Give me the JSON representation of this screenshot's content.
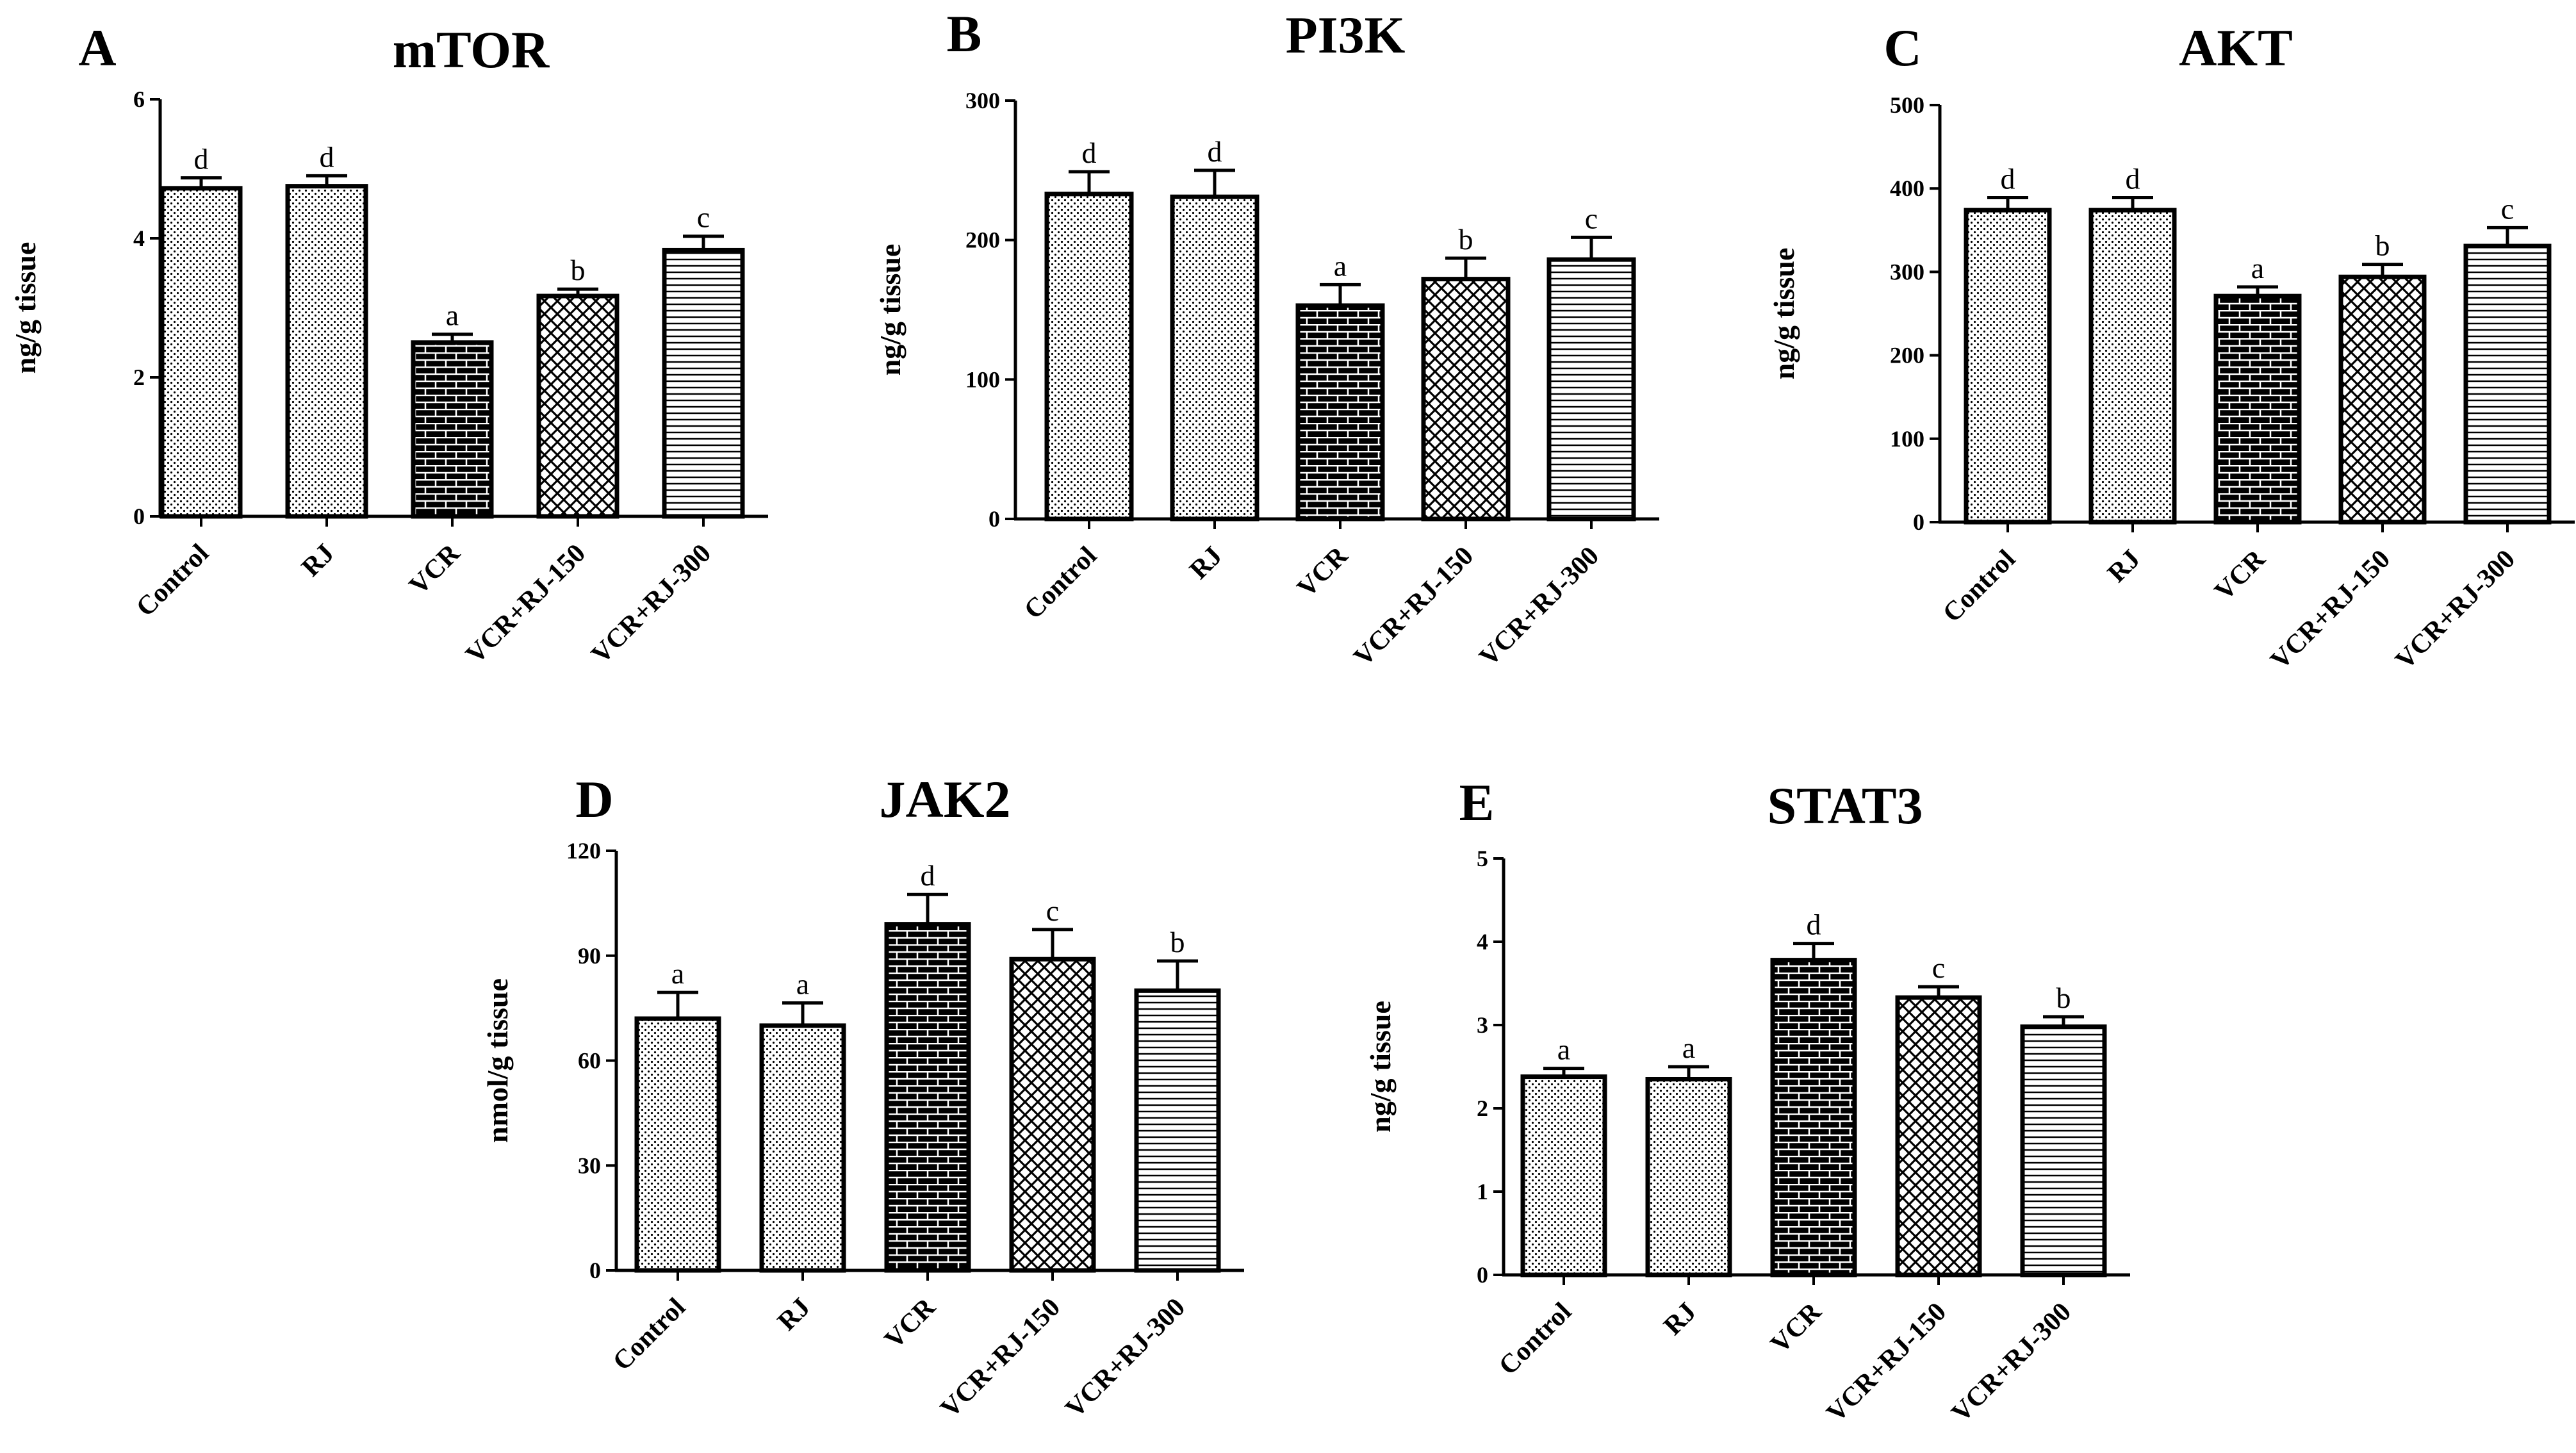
{
  "chart_data": [
    {
      "type": "bar",
      "panel": "A",
      "title": "mTOR",
      "ylabel": "ng/g tissue",
      "xlabel": "",
      "ylim": [
        0,
        6
      ],
      "yticks": [
        0,
        2,
        4,
        6
      ],
      "categories": [
        "Control",
        "RJ",
        "VCR",
        "VCR+RJ-150",
        "VCR+RJ-300"
      ],
      "values": [
        4.72,
        4.75,
        2.5,
        3.17,
        3.83
      ],
      "errors": [
        0.15,
        0.15,
        0.12,
        0.1,
        0.2
      ],
      "significance": [
        "d",
        "d",
        "a",
        "b",
        "c"
      ],
      "patterns": [
        "dots",
        "dots",
        "bricks",
        "crosshatch",
        "hlines"
      ]
    },
    {
      "type": "bar",
      "panel": "B",
      "title": "PI3K",
      "ylabel": "ng/g tissue",
      "xlabel": "",
      "ylim": [
        0,
        300
      ],
      "yticks": [
        0,
        100,
        200,
        300
      ],
      "categories": [
        "Control",
        "RJ",
        "VCR",
        "VCR+RJ-150",
        "VCR+RJ-300"
      ],
      "values": [
        233,
        231,
        153,
        172,
        186
      ],
      "errors": [
        16,
        19,
        15,
        15,
        16
      ],
      "significance": [
        "d",
        "d",
        "a",
        "b",
        "c"
      ],
      "patterns": [
        "dots",
        "dots",
        "bricks",
        "crosshatch",
        "hlines"
      ]
    },
    {
      "type": "bar",
      "panel": "C",
      "title": "AKT",
      "ylabel": "ng/g tissue",
      "xlabel": "",
      "ylim": [
        0,
        500
      ],
      "yticks": [
        0,
        100,
        200,
        300,
        400,
        500
      ],
      "categories": [
        "Control",
        "RJ",
        "VCR",
        "VCR+RJ-150",
        "VCR+RJ-300"
      ],
      "values": [
        374,
        374,
        271,
        294,
        331
      ],
      "errors": [
        15,
        15,
        11,
        15,
        22
      ],
      "significance": [
        "d",
        "d",
        "a",
        "b",
        "c"
      ],
      "patterns": [
        "dots",
        "dots",
        "bricks",
        "crosshatch",
        "hlines"
      ]
    },
    {
      "type": "bar",
      "panel": "D",
      "title": "JAK2",
      "ylabel": "nmol/g tissue",
      "xlabel": "",
      "ylim": [
        0,
        120
      ],
      "yticks": [
        0,
        30,
        60,
        90,
        120
      ],
      "categories": [
        "Control",
        "RJ",
        "VCR",
        "VCR+RJ-150",
        "VCR+RJ-300"
      ],
      "values": [
        72,
        70,
        99,
        89,
        80
      ],
      "errors": [
        7.5,
        6.5,
        8.5,
        8.5,
        8.5
      ],
      "significance": [
        "a",
        "a",
        "d",
        "c",
        "b"
      ],
      "patterns": [
        "dots",
        "dots",
        "bricks",
        "crosshatch",
        "hlines"
      ]
    },
    {
      "type": "bar",
      "panel": "E",
      "title": "STAT3",
      "ylabel": "ng/g tissue",
      "xlabel": "",
      "ylim": [
        0,
        5
      ],
      "yticks": [
        0,
        1,
        2,
        3,
        4,
        5
      ],
      "categories": [
        "Control",
        "RJ",
        "VCR",
        "VCR+RJ-150",
        "VCR+RJ-300"
      ],
      "values": [
        2.38,
        2.35,
        3.78,
        3.33,
        2.98
      ],
      "errors": [
        0.1,
        0.15,
        0.2,
        0.13,
        0.12
      ],
      "significance": [
        "a",
        "a",
        "d",
        "c",
        "b"
      ],
      "patterns": [
        "dots",
        "dots",
        "bricks",
        "crosshatch",
        "hlines"
      ]
    }
  ]
}
